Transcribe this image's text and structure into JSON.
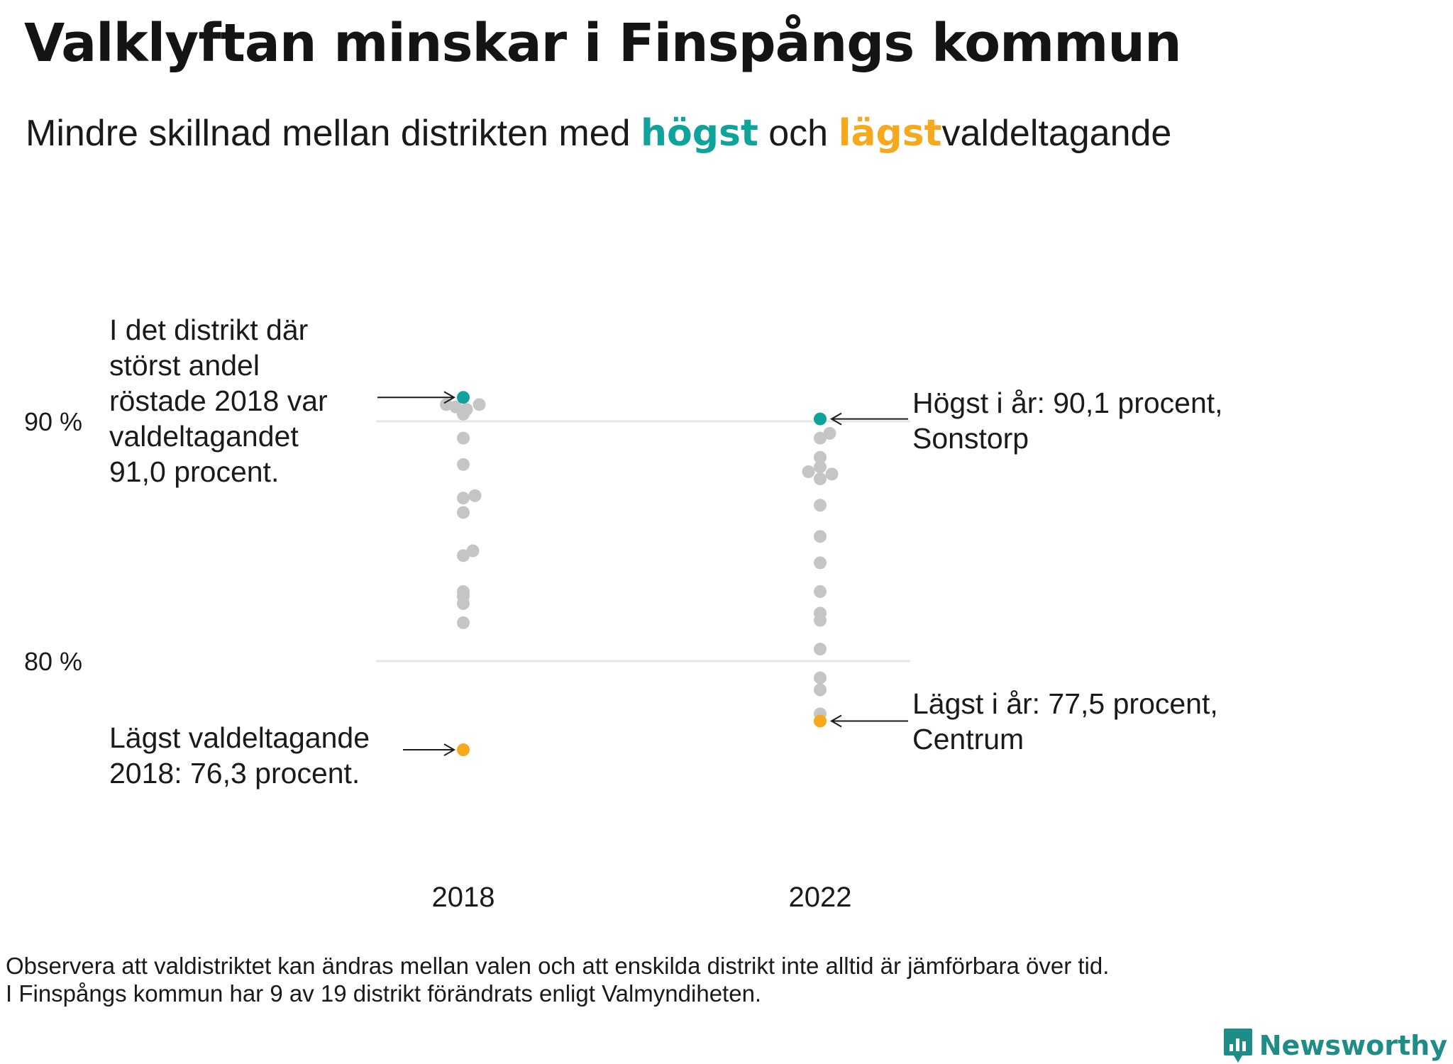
{
  "title": "Valklyftan minskar i Finspångs kommun",
  "subtitle": {
    "before": "Mindre  skillnad  mellan  distrikten   med",
    "high_word": "högst",
    "middle": "och",
    "low_word": "lägst",
    "after": "valdeltagande"
  },
  "colors": {
    "high": "#10a39b",
    "low": "#f6a91c",
    "other": "#c5c5c5",
    "grid": "#e6e6e6",
    "brand": "#1e8c87"
  },
  "chart_data": {
    "type": "scatter",
    "title": "Valklyftan minskar i Finspångs kommun",
    "xlabel": "",
    "ylabel": "",
    "categories": [
      "2018",
      "2022"
    ],
    "y_ticks": [
      {
        "value": 90,
        "label": "90 %"
      },
      {
        "value": 80,
        "label": "80 %"
      }
    ],
    "ylim": [
      72,
      96
    ],
    "grid": true,
    "series": [
      {
        "category": "2018",
        "max": {
          "value": 91.0
        },
        "min": {
          "value": 76.3
        },
        "points": [
          {
            "value": 90.7,
            "jitter": -1.6
          },
          {
            "value": 90.6,
            "jitter": -0.7
          },
          {
            "value": 90.5,
            "jitter": 0.3
          },
          {
            "value": 90.7,
            "jitter": 1.5
          },
          {
            "value": 90.4,
            "jitter": 0
          },
          {
            "value": 90.3,
            "jitter": 0
          },
          {
            "value": 89.3,
            "jitter": 0
          },
          {
            "value": 88.2,
            "jitter": 0
          },
          {
            "value": 86.8,
            "jitter": 0
          },
          {
            "value": 86.9,
            "jitter": 1.1
          },
          {
            "value": 86.2,
            "jitter": 0
          },
          {
            "value": 84.4,
            "jitter": 0
          },
          {
            "value": 84.6,
            "jitter": 0.9
          },
          {
            "value": 82.7,
            "jitter": 0
          },
          {
            "value": 82.4,
            "jitter": 0
          },
          {
            "value": 81.6,
            "jitter": 0
          },
          {
            "value": 82.9,
            "jitter": 0
          }
        ]
      },
      {
        "category": "2022",
        "max": {
          "value": 90.1,
          "district": "Sonstorp"
        },
        "min": {
          "value": 77.5,
          "district": "Centrum"
        },
        "points": [
          {
            "value": 89.5,
            "jitter": 0.9
          },
          {
            "value": 89.3,
            "jitter": 0
          },
          {
            "value": 88.5,
            "jitter": 0
          },
          {
            "value": 88.1,
            "jitter": 0
          },
          {
            "value": 87.9,
            "jitter": -1.1
          },
          {
            "value": 87.8,
            "jitter": 1.1
          },
          {
            "value": 87.6,
            "jitter": 0
          },
          {
            "value": 86.5,
            "jitter": 0
          },
          {
            "value": 85.2,
            "jitter": 0
          },
          {
            "value": 84.1,
            "jitter": 0
          },
          {
            "value": 82.9,
            "jitter": 0
          },
          {
            "value": 82.0,
            "jitter": 0
          },
          {
            "value": 81.7,
            "jitter": 0
          },
          {
            "value": 80.5,
            "jitter": 0
          },
          {
            "value": 79.3,
            "jitter": 0
          },
          {
            "value": 78.8,
            "jitter": 0
          },
          {
            "value": 77.8,
            "jitter": 0
          }
        ]
      }
    ],
    "annotations": {
      "max_2018": "I det distrikt där\nstörst andel\nröstade 2018 var\nvaldeltagandet\n91,0 procent.",
      "min_2018": "Lägst valdeltagande\n2018: 76,3 procent.",
      "max_2022": "Högst i år: 90,1 procent,\nSonstorp",
      "min_2022": "Lägst i år: 77,5 procent,\nCentrum"
    }
  },
  "footnote": {
    "line1": "Observera att valdistriktet kan ändras mellan valen och att enskilda distrikt inte alltid är jämförbara över tid.",
    "line2": "I Finspångs kommun har 9 av 19 distrikt förändrats enligt Valmyndiheten."
  },
  "brand": {
    "name": "Newsworthy",
    "icon": "bar-chart-logo-icon"
  }
}
